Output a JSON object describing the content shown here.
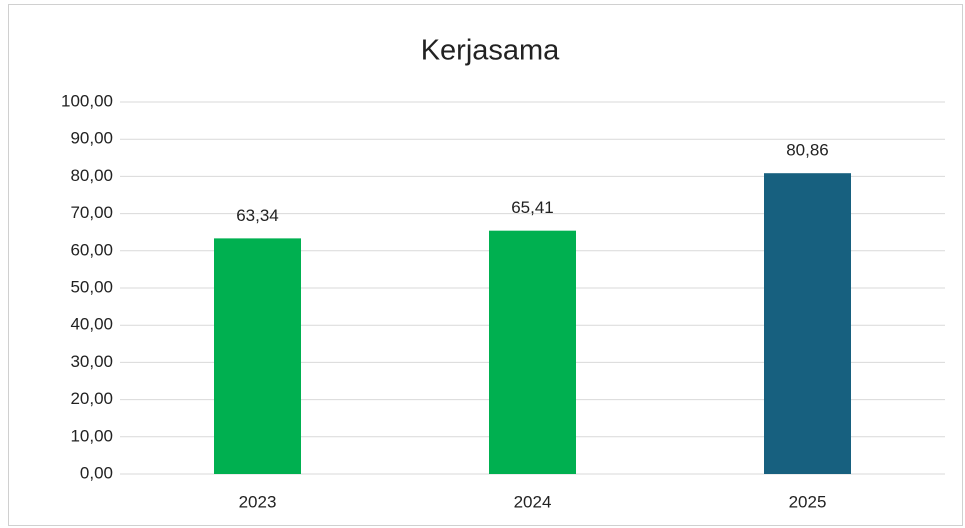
{
  "chart_data": {
    "type": "bar",
    "title": "Kerjasama",
    "categories": [
      "2023",
      "2024",
      "2025"
    ],
    "values": [
      63.34,
      65.41,
      80.86
    ],
    "value_labels": [
      "63,34",
      "65,41",
      "80,86"
    ],
    "colors": [
      "#00b050",
      "#00b050",
      "#17607f"
    ],
    "ylim": [
      0,
      100
    ],
    "yticks": [
      {
        "value": 0,
        "label": "0,00"
      },
      {
        "value": 10,
        "label": "10,00"
      },
      {
        "value": 20,
        "label": "20,00"
      },
      {
        "value": 30,
        "label": "30,00"
      },
      {
        "value": 40,
        "label": "40,00"
      },
      {
        "value": 50,
        "label": "50,00"
      },
      {
        "value": 60,
        "label": "60,00"
      },
      {
        "value": 70,
        "label": "70,00"
      },
      {
        "value": 80,
        "label": "80,00"
      },
      {
        "value": 90,
        "label": "90,00"
      },
      {
        "value": 100,
        "label": "100,00"
      }
    ],
    "grid": true
  }
}
